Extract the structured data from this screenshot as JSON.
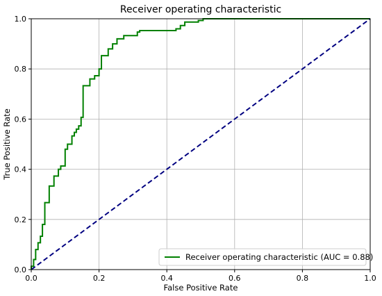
{
  "chart_data": {
    "type": "line",
    "title": "Receiver operating characteristic",
    "xlabel": "False Positive Rate",
    "ylabel": "True Positive Rate",
    "xlim": [
      0.0,
      1.0
    ],
    "ylim": [
      0.0,
      1.0
    ],
    "xticks": [
      "0.0",
      "0.2",
      "0.4",
      "0.6",
      "0.8",
      "1.0"
    ],
    "yticks": [
      "0.0",
      "0.2",
      "0.4",
      "0.6",
      "0.8",
      "1.0"
    ],
    "grid": true,
    "legend_position": "lower-right",
    "series": [
      {
        "name": "Receiver operating characteristic (AUC = 0.88)",
        "color": "#008000",
        "style": "solid",
        "x": [
          0.0,
          0.0,
          0.007,
          0.007,
          0.013,
          0.013,
          0.02,
          0.02,
          0.027,
          0.027,
          0.033,
          0.033,
          0.04,
          0.04,
          0.053,
          0.053,
          0.067,
          0.067,
          0.08,
          0.08,
          0.087,
          0.087,
          0.1,
          0.1,
          0.107,
          0.107,
          0.12,
          0.12,
          0.127,
          0.127,
          0.133,
          0.133,
          0.14,
          0.14,
          0.147,
          0.147,
          0.153,
          0.153,
          0.173,
          0.173,
          0.187,
          0.187,
          0.2,
          0.2,
          0.207,
          0.207,
          0.227,
          0.227,
          0.24,
          0.24,
          0.253,
          0.253,
          0.273,
          0.273,
          0.313,
          0.313,
          0.32,
          0.32,
          0.427,
          0.427,
          0.44,
          0.44,
          0.453,
          0.453,
          0.493,
          0.493,
          0.507,
          0.507,
          0.633,
          0.633,
          0.653,
          0.653,
          0.66,
          0.66,
          1.0
        ],
        "y": [
          0.0,
          0.013,
          0.013,
          0.04,
          0.04,
          0.08,
          0.08,
          0.107,
          0.107,
          0.133,
          0.133,
          0.18,
          0.18,
          0.267,
          0.267,
          0.333,
          0.333,
          0.373,
          0.373,
          0.4,
          0.4,
          0.413,
          0.413,
          0.48,
          0.48,
          0.5,
          0.5,
          0.533,
          0.533,
          0.547,
          0.547,
          0.56,
          0.56,
          0.573,
          0.573,
          0.607,
          0.607,
          0.733,
          0.733,
          0.76,
          0.76,
          0.773,
          0.773,
          0.8,
          0.8,
          0.853,
          0.853,
          0.88,
          0.88,
          0.9,
          0.9,
          0.92,
          0.92,
          0.933,
          0.933,
          0.947,
          0.947,
          0.953,
          0.953,
          0.96,
          0.96,
          0.973,
          0.973,
          0.987,
          0.987,
          0.993,
          0.993,
          1.0,
          1.0,
          1.0,
          1.0,
          1.0,
          1.0,
          1.0,
          1.0
        ]
      },
      {
        "color": "#000080",
        "style": "dashed",
        "x": [
          0.0,
          1.0
        ],
        "y": [
          0.0,
          1.0
        ]
      }
    ]
  }
}
